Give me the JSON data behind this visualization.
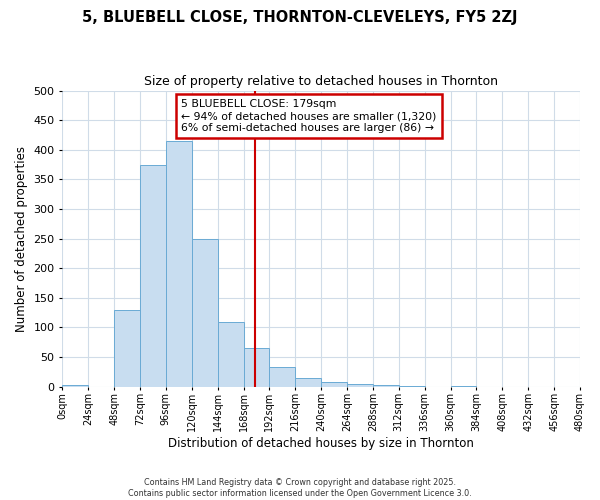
{
  "title1": "5, BLUEBELL CLOSE, THORNTON-CLEVELEYS, FY5 2ZJ",
  "title2": "Size of property relative to detached houses in Thornton",
  "xlabel": "Distribution of detached houses by size in Thornton",
  "ylabel": "Number of detached properties",
  "bin_edges": [
    0,
    24,
    48,
    72,
    96,
    120,
    144,
    168,
    192,
    216,
    240,
    264,
    288,
    312,
    336,
    360,
    384,
    408,
    432,
    456,
    480
  ],
  "bar_values": [
    3,
    0,
    130,
    375,
    415,
    250,
    110,
    65,
    33,
    14,
    8,
    5,
    2,
    1,
    0,
    1,
    0,
    0,
    0,
    0
  ],
  "bar_color": "#c8ddf0",
  "bar_edge_color": "#6aaad4",
  "vline_x": 179,
  "vline_color": "#cc0000",
  "ylim": [
    0,
    500
  ],
  "xlim": [
    0,
    480
  ],
  "annotation_title": "5 BLUEBELL CLOSE: 179sqm",
  "annotation_line1": "← 94% of detached houses are smaller (1,320)",
  "annotation_line2": "6% of semi-detached houses are larger (86) →",
  "annotation_box_color": "#cc0000",
  "footer1": "Contains HM Land Registry data © Crown copyright and database right 2025.",
  "footer2": "Contains public sector information licensed under the Open Government Licence 3.0.",
  "bg_color": "#ffffff",
  "plot_bg_color": "#ffffff",
  "grid_color": "#d0dce8"
}
